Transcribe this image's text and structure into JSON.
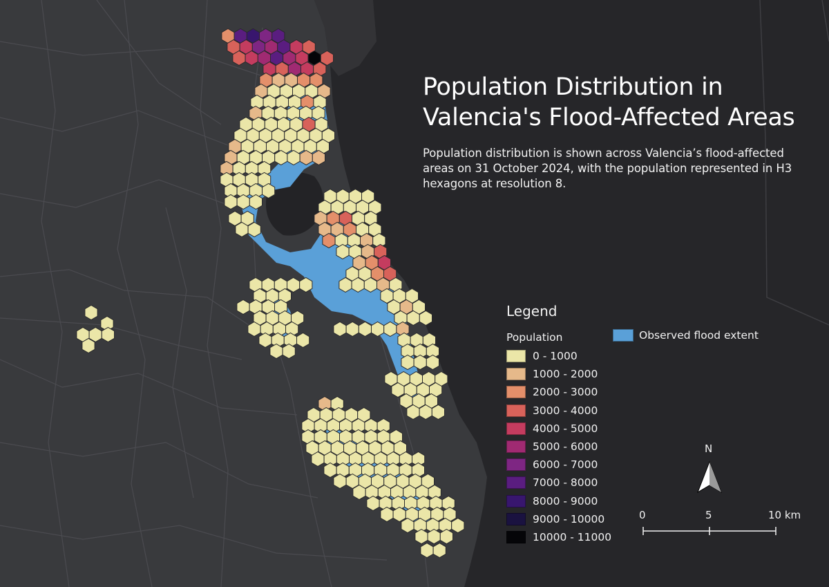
{
  "title_line1": "Population Distribution in",
  "title_line2": "Valencia's Flood-Affected Areas",
  "description": "Population distribution is shown across Valencia’s flood-affected areas on 31 October 2024, with the population represented in H3 hexagons at resolution 8.",
  "legend": {
    "title": "Legend",
    "population_heading": "Population",
    "classes": [
      {
        "label": "0 - 1000",
        "color": "#ebe6a8"
      },
      {
        "label": "1000 - 2000",
        "color": "#e6b98a"
      },
      {
        "label": "2000 - 3000",
        "color": "#e48f6a"
      },
      {
        "label": "3000 - 4000",
        "color": "#d8625a"
      },
      {
        "label": "4000 - 5000",
        "color": "#c43c5f"
      },
      {
        "label": "5000 - 6000",
        "color": "#a02a72"
      },
      {
        "label": "6000 - 7000",
        "color": "#7e2683"
      },
      {
        "label": "7000 - 8000",
        "color": "#5a1d80"
      },
      {
        "label": "8000 - 9000",
        "color": "#38166e"
      },
      {
        "label": "9000 - 10000",
        "color": "#1a1240"
      },
      {
        "label": "10000 - 11000",
        "color": "#050508"
      }
    ],
    "flood_label": "Observed flood extent",
    "flood_color": "#5aa0d8"
  },
  "north_arrow_label": "N",
  "scale_bar": {
    "labels": [
      "0",
      "5",
      "10 km"
    ]
  },
  "colors": {
    "land": "#3a3a3e",
    "sea": "#262629",
    "roads": "#4a4a4f"
  }
}
